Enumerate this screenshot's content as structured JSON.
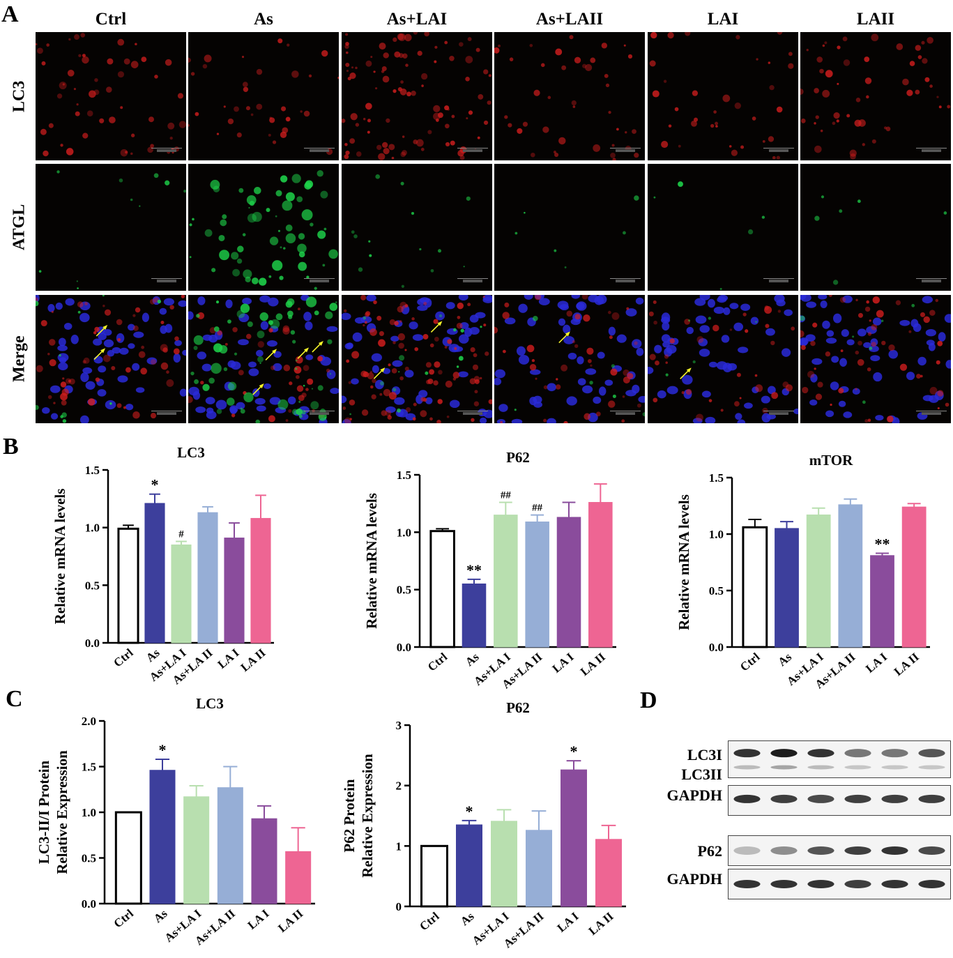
{
  "panel_letters": {
    "a": "A",
    "b": "B",
    "c": "C",
    "d": "D"
  },
  "figure_a": {
    "columns": [
      "Ctrl",
      "As",
      "As+LAI",
      "As+LAII",
      "LAI",
      "LAII"
    ],
    "rows": [
      "LC3",
      "ATGL",
      "Merge"
    ],
    "colors": {
      "lc3": "#d21e1e",
      "atgl": "#1ed24a",
      "nuclei": "#2a2ad8",
      "arrow": "#f5f52a"
    }
  },
  "chart_data": [
    {
      "type": "bar",
      "panel": "B",
      "title": "LC3",
      "ylabel": "Relative mRNA levels",
      "categories": [
        "Ctrl",
        "As",
        "As+LA I",
        "As+LA II",
        "LA I",
        "LA II"
      ],
      "values": [
        0.99,
        1.21,
        0.85,
        1.13,
        0.91,
        1.08
      ],
      "errors": [
        0.03,
        0.08,
        0.03,
        0.05,
        0.13,
        0.2
      ],
      "annotations": [
        "",
        "*",
        "#",
        "",
        "",
        ""
      ],
      "ylim": [
        0,
        1.5
      ],
      "yticks": [
        "0.0",
        "0.5",
        "1.0",
        "1.5"
      ]
    },
    {
      "type": "bar",
      "panel": "B",
      "title": "P62",
      "ylabel": "Relative mRNA levels",
      "categories": [
        "Ctrl",
        "As",
        "As+LA I",
        "As+LA II",
        "LA I",
        "LA II"
      ],
      "values": [
        1.01,
        0.55,
        1.15,
        1.09,
        1.13,
        1.26
      ],
      "errors": [
        0.02,
        0.04,
        0.11,
        0.06,
        0.13,
        0.16
      ],
      "annotations": [
        "",
        "**",
        "##",
        "##",
        "",
        ""
      ],
      "ylim": [
        0,
        1.5
      ],
      "yticks": [
        "0.0",
        "0.5",
        "1.0",
        "1.5"
      ]
    },
    {
      "type": "bar",
      "panel": "B",
      "title": "mTOR",
      "ylabel": "Relative mRNA levels",
      "categories": [
        "Ctrl",
        "As",
        "As+LA I",
        "As+LA II",
        "LA I",
        "LA II"
      ],
      "values": [
        1.06,
        1.05,
        1.17,
        1.26,
        0.81,
        1.24
      ],
      "errors": [
        0.07,
        0.06,
        0.06,
        0.05,
        0.02,
        0.03
      ],
      "annotations": [
        "",
        "",
        "",
        "",
        "**",
        ""
      ],
      "ylim": [
        0,
        1.5
      ],
      "yticks": [
        "0.0",
        "0.5",
        "1.0",
        "1.5"
      ]
    },
    {
      "type": "bar",
      "panel": "C",
      "title": "LC3",
      "ylabel": "LC3-II/I Protein",
      "ylabel2": "Relative Expression",
      "categories": [
        "Ctrl",
        "As",
        "As+LA I",
        "As+LA II",
        "LA I",
        "LA II"
      ],
      "values": [
        1.0,
        1.46,
        1.17,
        1.27,
        0.93,
        0.57
      ],
      "errors": [
        0,
        0.12,
        0.12,
        0.23,
        0.14,
        0.26
      ],
      "annotations": [
        "",
        "*",
        "",
        "",
        "",
        ""
      ],
      "ylim": [
        0,
        2.0
      ],
      "yticks": [
        "0.0",
        "0.5",
        "1.0",
        "1.5",
        "2.0"
      ]
    },
    {
      "type": "bar",
      "panel": "C",
      "title": "P62",
      "ylabel": "P62 Protein",
      "ylabel2": "Relative Expression",
      "categories": [
        "Ctrl",
        "As",
        "As+LA I",
        "As+LA II",
        "LA I",
        "LA II"
      ],
      "values": [
        1.0,
        1.35,
        1.41,
        1.26,
        2.26,
        1.11
      ],
      "errors": [
        0,
        0.07,
        0.19,
        0.32,
        0.15,
        0.23
      ],
      "annotations": [
        "",
        "*",
        "",
        "",
        "*",
        ""
      ],
      "ylim": [
        0,
        3
      ],
      "yticks": [
        "0",
        "1",
        "2",
        "3"
      ]
    }
  ],
  "bar_colors": [
    "#ffffff",
    "#3d3f9c",
    "#b8dfaf",
    "#96aed6",
    "#8a4c9c",
    "#ee6593"
  ],
  "figure_d": {
    "labels": [
      "LC3I",
      "LC3II",
      "GAPDH",
      "P62",
      "GAPDH"
    ]
  }
}
